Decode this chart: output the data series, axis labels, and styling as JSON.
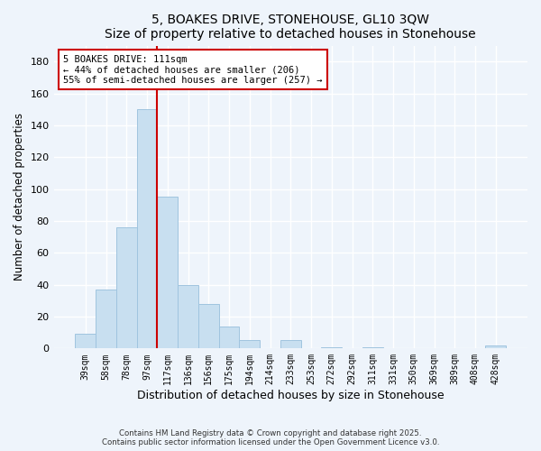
{
  "title": "5, BOAKES DRIVE, STONEHOUSE, GL10 3QW",
  "subtitle": "Size of property relative to detached houses in Stonehouse",
  "xlabel": "Distribution of detached houses by size in Stonehouse",
  "ylabel": "Number of detached properties",
  "bar_labels": [
    "39sqm",
    "58sqm",
    "78sqm",
    "97sqm",
    "117sqm",
    "136sqm",
    "156sqm",
    "175sqm",
    "194sqm",
    "214sqm",
    "233sqm",
    "253sqm",
    "272sqm",
    "292sqm",
    "311sqm",
    "331sqm",
    "350sqm",
    "369sqm",
    "389sqm",
    "408sqm",
    "428sqm"
  ],
  "bar_values": [
    9,
    37,
    76,
    150,
    95,
    40,
    28,
    14,
    5,
    0,
    5,
    0,
    1,
    0,
    1,
    0,
    0,
    0,
    0,
    0,
    2
  ],
  "bar_color": "#c8dff0",
  "bar_edge_color": "#a0c4df",
  "vline_color": "#cc0000",
  "annotation_title": "5 BOAKES DRIVE: 111sqm",
  "annotation_line1": "← 44% of detached houses are smaller (206)",
  "annotation_line2": "55% of semi-detached houses are larger (257) →",
  "annotation_box_color": "#ffffff",
  "annotation_box_edge": "#cc0000",
  "ylim": [
    0,
    190
  ],
  "yticks": [
    0,
    20,
    40,
    60,
    80,
    100,
    120,
    140,
    160,
    180
  ],
  "footnote1": "Contains HM Land Registry data © Crown copyright and database right 2025.",
  "footnote2": "Contains public sector information licensed under the Open Government Licence v3.0.",
  "bg_color": "#eef4fb",
  "grid_color": "#ffffff"
}
